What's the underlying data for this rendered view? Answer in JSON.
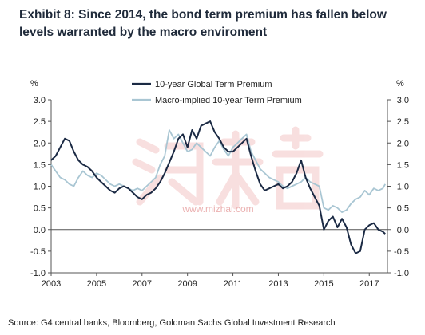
{
  "exhibit": {
    "title_line1": "Exhibit 8: Since 2014, the bond term premium has fallen below",
    "title_line2": "levels warranted by the macro enviroment"
  },
  "source": "Source: G4 central banks, Bloomberg, Goldman Sachs Global Investment Research",
  "watermark": {
    "text": "www.mizhai.com",
    "color": "#e9a3a3"
  },
  "chart_data": {
    "type": "line",
    "title": "",
    "left_unit": "%",
    "right_unit": "%",
    "xlim": [
      2003,
      2017.8
    ],
    "ylim": [
      -1.0,
      3.0
    ],
    "x_ticks": [
      2003,
      2005,
      2007,
      2009,
      2011,
      2013,
      2015,
      2017
    ],
    "x_tick_labels": [
      "2003",
      "2005",
      "2007",
      "2009",
      "2011",
      "2013",
      "2015",
      "2017"
    ],
    "y_ticks": [
      -1.0,
      -0.5,
      0.0,
      0.5,
      1.0,
      1.5,
      2.0,
      2.5,
      3.0
    ],
    "y_tick_labels": [
      "-1.0",
      "-0.5",
      "0.0",
      "0.5",
      "1.0",
      "1.5",
      "2.0",
      "2.5",
      "3.0"
    ],
    "zero_line": true,
    "grid": false,
    "legend_position": "top-center",
    "series": [
      {
        "name": "10-year Global Term Premium",
        "color": "#1b2a44",
        "x": [
          2003.0,
          2003.2,
          2003.4,
          2003.6,
          2003.8,
          2004.0,
          2004.2,
          2004.4,
          2004.6,
          2004.8,
          2005.0,
          2005.2,
          2005.4,
          2005.6,
          2005.8,
          2006.0,
          2006.2,
          2006.4,
          2006.6,
          2006.8,
          2007.0,
          2007.2,
          2007.4,
          2007.6,
          2007.8,
          2008.0,
          2008.2,
          2008.4,
          2008.6,
          2008.8,
          2009.0,
          2009.2,
          2009.4,
          2009.6,
          2009.8,
          2010.0,
          2010.2,
          2010.4,
          2010.6,
          2010.8,
          2011.0,
          2011.2,
          2011.4,
          2011.6,
          2011.8,
          2012.0,
          2012.2,
          2012.4,
          2012.6,
          2012.8,
          2013.0,
          2013.2,
          2013.4,
          2013.6,
          2013.8,
          2014.0,
          2014.2,
          2014.4,
          2014.6,
          2014.8,
          2015.0,
          2015.2,
          2015.4,
          2015.6,
          2015.8,
          2016.0,
          2016.2,
          2016.4,
          2016.6,
          2016.8,
          2017.0,
          2017.2,
          2017.4,
          2017.6,
          2017.7
        ],
        "y": [
          1.6,
          1.7,
          1.9,
          2.1,
          2.05,
          1.8,
          1.6,
          1.5,
          1.45,
          1.35,
          1.2,
          1.1,
          1.0,
          0.9,
          0.85,
          0.95,
          1.0,
          0.95,
          0.85,
          0.75,
          0.7,
          0.8,
          0.85,
          0.95,
          1.1,
          1.3,
          1.55,
          1.8,
          2.1,
          2.2,
          1.9,
          2.3,
          2.1,
          2.4,
          2.45,
          2.5,
          2.25,
          2.1,
          1.9,
          1.8,
          1.8,
          1.9,
          2.0,
          2.1,
          1.7,
          1.35,
          1.05,
          0.9,
          0.95,
          1.0,
          1.05,
          0.95,
          1.0,
          1.1,
          1.3,
          1.6,
          1.2,
          0.95,
          0.75,
          0.55,
          0.0,
          0.2,
          0.3,
          0.05,
          0.25,
          0.05,
          -0.35,
          -0.55,
          -0.5,
          0.0,
          0.1,
          0.15,
          0.0,
          -0.05,
          -0.1
        ]
      },
      {
        "name": "Macro-implied 10-year Term Premium",
        "color": "#a9c6d3",
        "x": [
          2003.0,
          2003.2,
          2003.4,
          2003.6,
          2003.8,
          2004.0,
          2004.2,
          2004.4,
          2004.6,
          2004.8,
          2005.0,
          2005.2,
          2005.4,
          2005.6,
          2005.8,
          2006.0,
          2006.2,
          2006.4,
          2006.6,
          2006.8,
          2007.0,
          2007.2,
          2007.4,
          2007.6,
          2007.8,
          2008.0,
          2008.2,
          2008.4,
          2008.6,
          2008.8,
          2009.0,
          2009.2,
          2009.4,
          2009.6,
          2009.8,
          2010.0,
          2010.2,
          2010.4,
          2010.6,
          2010.8,
          2011.0,
          2011.2,
          2011.4,
          2011.6,
          2011.8,
          2012.0,
          2012.2,
          2012.4,
          2012.6,
          2012.8,
          2013.0,
          2013.2,
          2013.4,
          2013.6,
          2013.8,
          2014.0,
          2014.2,
          2014.4,
          2014.6,
          2014.8,
          2015.0,
          2015.2,
          2015.4,
          2015.6,
          2015.8,
          2016.0,
          2016.2,
          2016.4,
          2016.6,
          2016.8,
          2017.0,
          2017.2,
          2017.4,
          2017.6,
          2017.7
        ],
        "y": [
          1.5,
          1.35,
          1.2,
          1.15,
          1.05,
          1.0,
          1.2,
          1.35,
          1.25,
          1.2,
          1.3,
          1.25,
          1.15,
          1.05,
          1.0,
          1.05,
          1.0,
          0.95,
          0.9,
          0.95,
          0.9,
          1.0,
          1.1,
          1.2,
          1.5,
          1.7,
          2.3,
          2.1,
          2.2,
          2.0,
          1.8,
          1.85,
          2.0,
          1.9,
          1.8,
          1.7,
          1.9,
          2.05,
          1.85,
          1.7,
          1.9,
          2.0,
          2.1,
          2.2,
          1.8,
          1.6,
          1.4,
          1.3,
          1.2,
          1.15,
          1.1,
          1.0,
          0.95,
          1.0,
          1.05,
          1.1,
          1.2,
          1.1,
          1.05,
          1.0,
          0.5,
          0.45,
          0.55,
          0.5,
          0.4,
          0.45,
          0.6,
          0.7,
          0.75,
          0.9,
          0.8,
          0.95,
          0.9,
          0.95,
          1.05
        ]
      }
    ]
  }
}
